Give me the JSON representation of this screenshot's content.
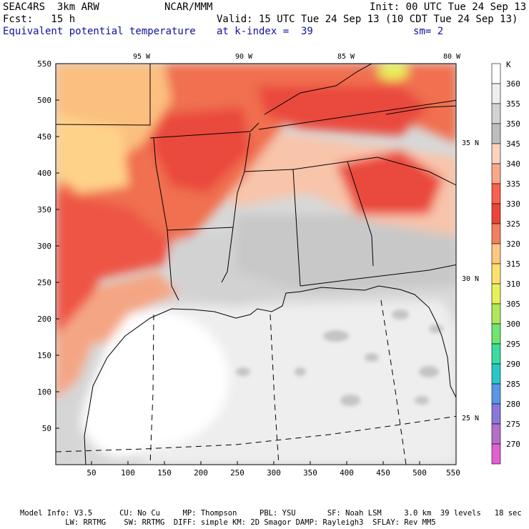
{
  "header": {
    "model": "SEAC4RS  3km ARW",
    "center": "NCAR/MMM",
    "init": "Init: 00 UTC Tue 24 Sep 13",
    "fcst": "Fcst:   15 h",
    "valid": "Valid: 15 UTC Tue 24 Sep 13 (10 CDT Tue 24 Sep 13)",
    "field": "Equivalent potential temperature",
    "level": "at k-index =  39",
    "smooth": "sm= 2"
  },
  "map": {
    "lon_labels": [
      "95 W",
      "90 W",
      "85 W",
      "80 W"
    ],
    "lat_labels": [
      "35 N",
      "30 N",
      "25 N"
    ],
    "x_ticks": [
      "50",
      "100",
      "150",
      "200",
      "250",
      "300",
      "350",
      "400",
      "450",
      "500",
      "550"
    ],
    "y_ticks": [
      "550",
      "500",
      "450",
      "400",
      "350",
      "300",
      "250",
      "200",
      "150",
      "100",
      "50"
    ]
  },
  "colorbar": {
    "unit": "K",
    "levels": [
      "360",
      "355",
      "350",
      "345",
      "340",
      "335",
      "330",
      "325",
      "320",
      "315",
      "310",
      "305",
      "300",
      "295",
      "290",
      "285",
      "280",
      "275",
      "270"
    ],
    "colors": [
      "#ffffff",
      "#eeeeee",
      "#d2d2d2",
      "#bebebe",
      "#ffd2be",
      "#f9a88a",
      "#f86050",
      "#ee4438",
      "#f28060",
      "#ffc880",
      "#ffe06e",
      "#e8f05a",
      "#b0e85a",
      "#6ee670",
      "#3cdca0",
      "#28c8c8",
      "#5a96e6",
      "#8a78d8",
      "#b470c8",
      "#e060d2"
    ]
  },
  "footer": {
    "line1": "Model Info: V3.5      CU: No Cu     MP: Thompson     PBL: YSU       SF: Noah LSM     3.0 km  39 levels   18 sec",
    "line2": "          LW: RRTMG    SW: RRTMG  DIFF: simple KM: 2D Smagor DAMP: Rayleigh3  SFLAY: Rev MM5"
  }
}
